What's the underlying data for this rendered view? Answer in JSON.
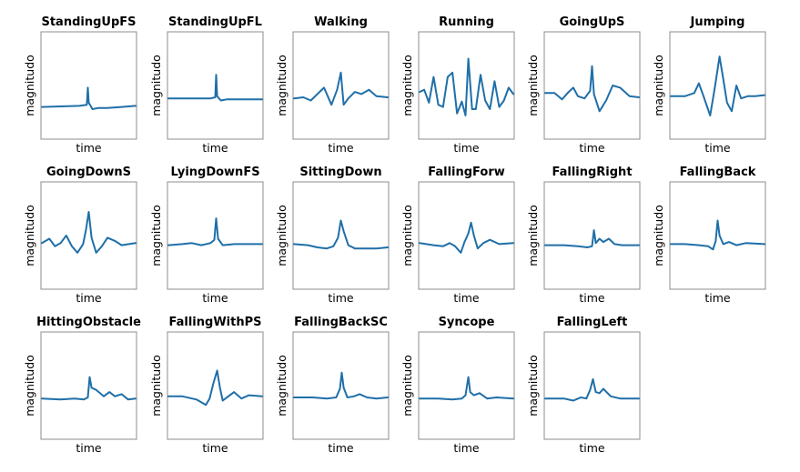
{
  "chart_data": {
    "type": "line",
    "grid": false,
    "line_color": "#1f6fa8",
    "frame_color": "#8c8c8c",
    "xlabel": "time",
    "ylabel": "magnitudo",
    "x_ticks_shown": false,
    "y_ticks_shown": false,
    "y_range": [
      0,
      1
    ],
    "x_range": [
      0,
      1
    ],
    "note": "",
    "subplots": [
      {
        "title": "StandingUpFS",
        "shape": [
          [
            0.0,
            0.3
          ],
          [
            0.4,
            0.31
          ],
          [
            0.48,
            0.32
          ],
          [
            0.49,
            0.48
          ],
          [
            0.5,
            0.34
          ],
          [
            0.54,
            0.28
          ],
          [
            0.6,
            0.29
          ],
          [
            0.7,
            0.29
          ],
          [
            0.85,
            0.3
          ],
          [
            1.0,
            0.31
          ]
        ]
      },
      {
        "title": "StandingUpFL",
        "shape": [
          [
            0.0,
            0.38
          ],
          [
            0.45,
            0.38
          ],
          [
            0.5,
            0.39
          ],
          [
            0.51,
            0.6
          ],
          [
            0.52,
            0.4
          ],
          [
            0.56,
            0.36
          ],
          [
            0.62,
            0.37
          ],
          [
            0.75,
            0.37
          ],
          [
            1.0,
            0.37
          ]
        ]
      },
      {
        "title": "Walking",
        "shape": [
          [
            0.0,
            0.38
          ],
          [
            0.1,
            0.39
          ],
          [
            0.18,
            0.36
          ],
          [
            0.25,
            0.42
          ],
          [
            0.32,
            0.48
          ],
          [
            0.4,
            0.32
          ],
          [
            0.46,
            0.46
          ],
          [
            0.5,
            0.62
          ],
          [
            0.53,
            0.32
          ],
          [
            0.58,
            0.38
          ],
          [
            0.65,
            0.44
          ],
          [
            0.72,
            0.42
          ],
          [
            0.8,
            0.46
          ],
          [
            0.88,
            0.4
          ],
          [
            1.0,
            0.39
          ]
        ]
      },
      {
        "title": "Running",
        "shape": [
          [
            0.0,
            0.44
          ],
          [
            0.05,
            0.46
          ],
          [
            0.1,
            0.34
          ],
          [
            0.15,
            0.58
          ],
          [
            0.2,
            0.32
          ],
          [
            0.25,
            0.3
          ],
          [
            0.3,
            0.58
          ],
          [
            0.35,
            0.62
          ],
          [
            0.4,
            0.24
          ],
          [
            0.45,
            0.35
          ],
          [
            0.49,
            0.22
          ],
          [
            0.52,
            0.75
          ],
          [
            0.56,
            0.28
          ],
          [
            0.6,
            0.28
          ],
          [
            0.65,
            0.6
          ],
          [
            0.7,
            0.36
          ],
          [
            0.75,
            0.28
          ],
          [
            0.8,
            0.54
          ],
          [
            0.85,
            0.3
          ],
          [
            0.9,
            0.36
          ],
          [
            0.95,
            0.48
          ],
          [
            1.0,
            0.42
          ]
        ]
      },
      {
        "title": "GoingUpS",
        "shape": [
          [
            0.0,
            0.43
          ],
          [
            0.1,
            0.43
          ],
          [
            0.18,
            0.37
          ],
          [
            0.25,
            0.44
          ],
          [
            0.3,
            0.48
          ],
          [
            0.35,
            0.4
          ],
          [
            0.42,
            0.38
          ],
          [
            0.48,
            0.45
          ],
          [
            0.5,
            0.68
          ],
          [
            0.52,
            0.42
          ],
          [
            0.58,
            0.26
          ],
          [
            0.65,
            0.36
          ],
          [
            0.72,
            0.5
          ],
          [
            0.8,
            0.48
          ],
          [
            0.9,
            0.4
          ],
          [
            1.0,
            0.39
          ]
        ]
      },
      {
        "title": "Jumping",
        "shape": [
          [
            0.0,
            0.4
          ],
          [
            0.15,
            0.4
          ],
          [
            0.25,
            0.43
          ],
          [
            0.3,
            0.52
          ],
          [
            0.35,
            0.4
          ],
          [
            0.42,
            0.22
          ],
          [
            0.47,
            0.48
          ],
          [
            0.52,
            0.77
          ],
          [
            0.56,
            0.56
          ],
          [
            0.6,
            0.34
          ],
          [
            0.65,
            0.26
          ],
          [
            0.7,
            0.5
          ],
          [
            0.75,
            0.38
          ],
          [
            0.82,
            0.4
          ],
          [
            0.9,
            0.4
          ],
          [
            1.0,
            0.41
          ]
        ]
      },
      {
        "title": "GoingDownS",
        "shape": [
          [
            0.0,
            0.43
          ],
          [
            0.08,
            0.47
          ],
          [
            0.14,
            0.4
          ],
          [
            0.2,
            0.43
          ],
          [
            0.26,
            0.5
          ],
          [
            0.32,
            0.4
          ],
          [
            0.38,
            0.34
          ],
          [
            0.44,
            0.42
          ],
          [
            0.47,
            0.55
          ],
          [
            0.5,
            0.72
          ],
          [
            0.53,
            0.48
          ],
          [
            0.58,
            0.34
          ],
          [
            0.64,
            0.4
          ],
          [
            0.7,
            0.48
          ],
          [
            0.78,
            0.45
          ],
          [
            0.85,
            0.41
          ],
          [
            1.0,
            0.43
          ]
        ]
      },
      {
        "title": "LyingDownFS",
        "shape": [
          [
            0.0,
            0.41
          ],
          [
            0.15,
            0.42
          ],
          [
            0.25,
            0.43
          ],
          [
            0.35,
            0.41
          ],
          [
            0.45,
            0.43
          ],
          [
            0.49,
            0.46
          ],
          [
            0.51,
            0.66
          ],
          [
            0.53,
            0.47
          ],
          [
            0.58,
            0.41
          ],
          [
            0.7,
            0.42
          ],
          [
            0.85,
            0.42
          ],
          [
            1.0,
            0.42
          ]
        ]
      },
      {
        "title": "SittingDown",
        "shape": [
          [
            0.0,
            0.42
          ],
          [
            0.15,
            0.41
          ],
          [
            0.25,
            0.39
          ],
          [
            0.35,
            0.38
          ],
          [
            0.42,
            0.4
          ],
          [
            0.47,
            0.48
          ],
          [
            0.5,
            0.64
          ],
          [
            0.53,
            0.54
          ],
          [
            0.58,
            0.41
          ],
          [
            0.65,
            0.38
          ],
          [
            0.75,
            0.38
          ],
          [
            0.88,
            0.38
          ],
          [
            1.0,
            0.39
          ]
        ]
      },
      {
        "title": "FallingForw",
        "shape": [
          [
            0.0,
            0.43
          ],
          [
            0.15,
            0.41
          ],
          [
            0.25,
            0.4
          ],
          [
            0.32,
            0.43
          ],
          [
            0.38,
            0.4
          ],
          [
            0.44,
            0.34
          ],
          [
            0.48,
            0.44
          ],
          [
            0.52,
            0.52
          ],
          [
            0.55,
            0.62
          ],
          [
            0.58,
            0.5
          ],
          [
            0.62,
            0.38
          ],
          [
            0.68,
            0.43
          ],
          [
            0.75,
            0.46
          ],
          [
            0.85,
            0.42
          ],
          [
            1.0,
            0.43
          ]
        ]
      },
      {
        "title": "FallingRight",
        "shape": [
          [
            0.0,
            0.41
          ],
          [
            0.2,
            0.41
          ],
          [
            0.35,
            0.4
          ],
          [
            0.45,
            0.39
          ],
          [
            0.5,
            0.4
          ],
          [
            0.52,
            0.55
          ],
          [
            0.54,
            0.43
          ],
          [
            0.58,
            0.47
          ],
          [
            0.62,
            0.44
          ],
          [
            0.68,
            0.47
          ],
          [
            0.74,
            0.42
          ],
          [
            0.82,
            0.41
          ],
          [
            1.0,
            0.41
          ]
        ]
      },
      {
        "title": "FallingBack",
        "shape": [
          [
            0.0,
            0.42
          ],
          [
            0.15,
            0.42
          ],
          [
            0.3,
            0.41
          ],
          [
            0.4,
            0.4
          ],
          [
            0.45,
            0.37
          ],
          [
            0.48,
            0.45
          ],
          [
            0.5,
            0.64
          ],
          [
            0.52,
            0.5
          ],
          [
            0.56,
            0.42
          ],
          [
            0.62,
            0.44
          ],
          [
            0.7,
            0.41
          ],
          [
            0.8,
            0.43
          ],
          [
            1.0,
            0.42
          ]
        ]
      },
      {
        "title": "HittingObstacle",
        "shape": [
          [
            0.0,
            0.38
          ],
          [
            0.2,
            0.37
          ],
          [
            0.35,
            0.38
          ],
          [
            0.45,
            0.37
          ],
          [
            0.49,
            0.39
          ],
          [
            0.51,
            0.58
          ],
          [
            0.53,
            0.48
          ],
          [
            0.58,
            0.46
          ],
          [
            0.66,
            0.4
          ],
          [
            0.72,
            0.44
          ],
          [
            0.78,
            0.4
          ],
          [
            0.85,
            0.42
          ],
          [
            0.92,
            0.37
          ],
          [
            1.0,
            0.38
          ]
        ]
      },
      {
        "title": "FallingWithPS",
        "shape": [
          [
            0.0,
            0.4
          ],
          [
            0.15,
            0.4
          ],
          [
            0.3,
            0.37
          ],
          [
            0.4,
            0.32
          ],
          [
            0.44,
            0.38
          ],
          [
            0.48,
            0.52
          ],
          [
            0.52,
            0.64
          ],
          [
            0.55,
            0.48
          ],
          [
            0.58,
            0.36
          ],
          [
            0.64,
            0.4
          ],
          [
            0.7,
            0.44
          ],
          [
            0.78,
            0.38
          ],
          [
            0.86,
            0.41
          ],
          [
            1.0,
            0.4
          ]
        ]
      },
      {
        "title": "FallingBackSC",
        "shape": [
          [
            0.0,
            0.39
          ],
          [
            0.2,
            0.39
          ],
          [
            0.35,
            0.38
          ],
          [
            0.45,
            0.39
          ],
          [
            0.49,
            0.47
          ],
          [
            0.51,
            0.62
          ],
          [
            0.53,
            0.48
          ],
          [
            0.57,
            0.39
          ],
          [
            0.64,
            0.4
          ],
          [
            0.7,
            0.42
          ],
          [
            0.78,
            0.39
          ],
          [
            0.88,
            0.38
          ],
          [
            1.0,
            0.39
          ]
        ]
      },
      {
        "title": "Syncope",
        "shape": [
          [
            0.0,
            0.38
          ],
          [
            0.2,
            0.38
          ],
          [
            0.35,
            0.37
          ],
          [
            0.45,
            0.38
          ],
          [
            0.49,
            0.41
          ],
          [
            0.52,
            0.58
          ],
          [
            0.54,
            0.44
          ],
          [
            0.58,
            0.41
          ],
          [
            0.64,
            0.43
          ],
          [
            0.72,
            0.38
          ],
          [
            0.82,
            0.39
          ],
          [
            1.0,
            0.38
          ]
        ]
      },
      {
        "title": "FallingLeft",
        "shape": [
          [
            0.0,
            0.38
          ],
          [
            0.2,
            0.38
          ],
          [
            0.3,
            0.36
          ],
          [
            0.38,
            0.39
          ],
          [
            0.44,
            0.38
          ],
          [
            0.48,
            0.46
          ],
          [
            0.51,
            0.56
          ],
          [
            0.54,
            0.44
          ],
          [
            0.58,
            0.43
          ],
          [
            0.62,
            0.47
          ],
          [
            0.7,
            0.4
          ],
          [
            0.8,
            0.38
          ],
          [
            1.0,
            0.38
          ]
        ]
      }
    ]
  }
}
